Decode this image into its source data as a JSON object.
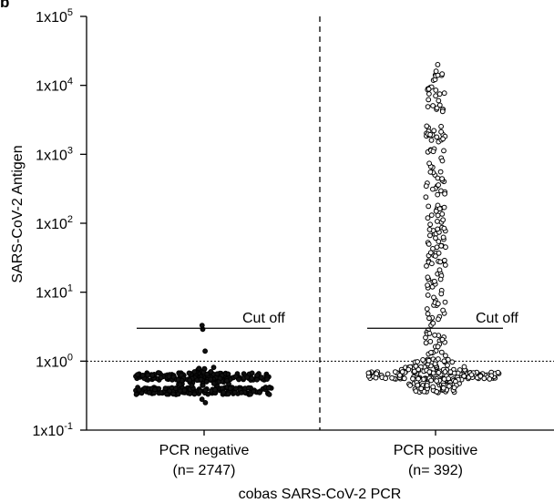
{
  "chart_data": {
    "type": "scatter",
    "panel_label": "b",
    "title": "",
    "ylabel": "SARS-CoV-2 Antigen",
    "xlabel": "cobas SARS-CoV-2 PCR",
    "y_scale": "log",
    "ylim": [
      0.1,
      100000
    ],
    "y_ticks": [
      {
        "base": "1x10",
        "exp": "-1"
      },
      {
        "base": "1x10",
        "exp": "0"
      },
      {
        "base": "1x10",
        "exp": "1"
      },
      {
        "base": "1x10",
        "exp": "2"
      },
      {
        "base": "1x10",
        "exp": "3"
      },
      {
        "base": "1x10",
        "exp": "4"
      },
      {
        "base": "1x10",
        "exp": "5"
      }
    ],
    "y_tick_values": [
      0.1,
      1,
      10,
      100,
      1000,
      10000,
      100000
    ],
    "reference_line": {
      "value": 1,
      "style": "dotted"
    },
    "categories": [
      {
        "label": "PCR negative",
        "n_label": "(n= 2747)"
      },
      {
        "label": "PCR positive",
        "n_label": "(n= 392)"
      }
    ],
    "cutoff": {
      "label": "Cut off",
      "value": 3.0
    },
    "groups": [
      {
        "name": "PCR negative",
        "style": "filled",
        "bands": [
          {
            "value": 0.6,
            "count": 180,
            "spread": 1.0
          },
          {
            "value": 0.37,
            "count": 160,
            "spread": 1.0
          },
          {
            "value": 0.5,
            "count": 40,
            "spread": 0.4
          },
          {
            "value": 0.72,
            "count": 14,
            "spread": 0.15
          }
        ],
        "outliers": [
          3.3,
          2.9,
          1.4,
          0.28,
          0.25
        ]
      },
      {
        "name": "PCR positive",
        "style": "open",
        "bands": [
          {
            "value": 0.62,
            "count": 90,
            "spread": 1.0
          },
          {
            "value": 0.75,
            "count": 40,
            "spread": 0.5
          },
          {
            "value": 0.5,
            "count": 40,
            "spread": 0.4
          },
          {
            "value": 0.4,
            "count": 30,
            "spread": 0.3
          },
          {
            "value": 0.95,
            "count": 20,
            "spread": 0.3
          }
        ],
        "column": {
          "log_min": 0.0,
          "log_max": 4.2,
          "count": 190
        },
        "outliers": [
          20000,
          16000,
          14000,
          0.35,
          0.36
        ]
      }
    ]
  }
}
